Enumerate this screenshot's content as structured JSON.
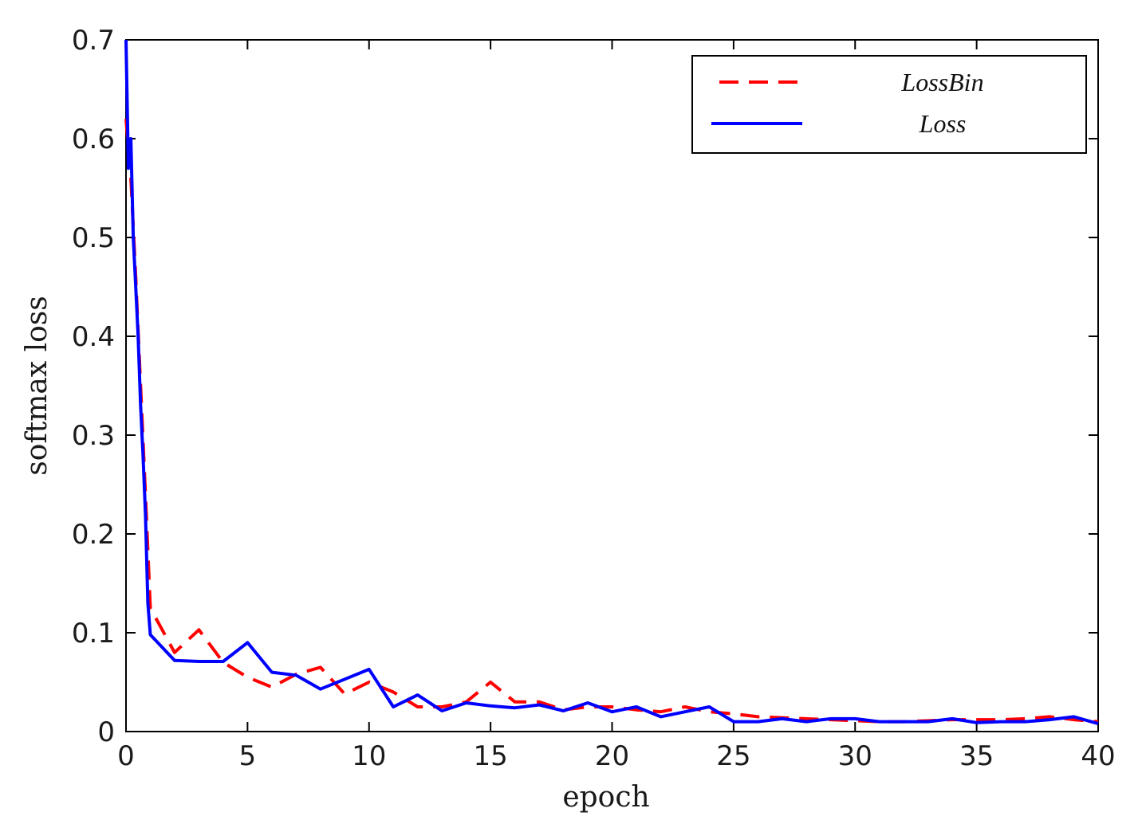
{
  "chart_data": {
    "type": "line",
    "xlabel": "epoch",
    "ylabel": "softmax loss",
    "xlim": [
      0,
      40
    ],
    "ylim": [
      0,
      0.7
    ],
    "xticks": [
      "0",
      "5",
      "10",
      "15",
      "20",
      "25",
      "30",
      "35",
      "40"
    ],
    "yticks": [
      "0",
      "0.1",
      "0.2",
      "0.3",
      "0.4",
      "0.5",
      "0.6",
      "0.7"
    ],
    "grid": false,
    "legend_position": "top-right",
    "series": [
      {
        "name": "LossBin",
        "style": "dashed",
        "color": "#ff0000",
        "x": [
          0,
          0.2,
          0.4,
          0.6,
          0.8,
          1,
          2,
          3,
          4,
          5,
          6,
          7,
          8,
          9,
          10,
          11,
          12,
          13,
          14,
          15,
          16,
          17,
          18,
          19,
          20,
          21,
          22,
          23,
          24,
          25,
          26,
          27,
          28,
          29,
          30,
          31,
          32,
          33,
          34,
          35,
          36,
          37,
          38,
          39,
          40
        ],
        "y": [
          0.62,
          0.56,
          0.46,
          0.35,
          0.24,
          0.125,
          0.08,
          0.103,
          0.07,
          0.055,
          0.045,
          0.058,
          0.065,
          0.038,
          0.05,
          0.04,
          0.025,
          0.025,
          0.03,
          0.05,
          0.03,
          0.03,
          0.022,
          0.025,
          0.025,
          0.022,
          0.02,
          0.025,
          0.02,
          0.018,
          0.015,
          0.014,
          0.013,
          0.012,
          0.011,
          0.01,
          0.01,
          0.011,
          0.012,
          0.012,
          0.012,
          0.013,
          0.015,
          0.012,
          0.01
        ]
      },
      {
        "name": "Loss",
        "style": "solid",
        "color": "#0000ff",
        "x": [
          0,
          0.1,
          0.2,
          0.3,
          0.4,
          0.5,
          0.6,
          0.7,
          0.8,
          0.9,
          1,
          2,
          3,
          4,
          5,
          6,
          7,
          8,
          9,
          10,
          11,
          12,
          13,
          14,
          15,
          16,
          17,
          18,
          19,
          20,
          21,
          22,
          23,
          24,
          25,
          26,
          27,
          28,
          29,
          30,
          31,
          32,
          33,
          34,
          35,
          36,
          37,
          38,
          39,
          40
        ],
        "y": [
          0.7,
          0.57,
          0.6,
          0.5,
          0.45,
          0.4,
          0.33,
          0.28,
          0.22,
          0.13,
          0.098,
          0.072,
          0.071,
          0.071,
          0.09,
          0.06,
          0.057,
          0.043,
          0.053,
          0.063,
          0.025,
          0.037,
          0.021,
          0.029,
          0.026,
          0.024,
          0.027,
          0.021,
          0.029,
          0.02,
          0.025,
          0.015,
          0.02,
          0.025,
          0.01,
          0.01,
          0.013,
          0.01,
          0.013,
          0.013,
          0.01,
          0.01,
          0.01,
          0.013,
          0.009,
          0.01,
          0.01,
          0.012,
          0.015,
          0.008
        ]
      }
    ]
  }
}
